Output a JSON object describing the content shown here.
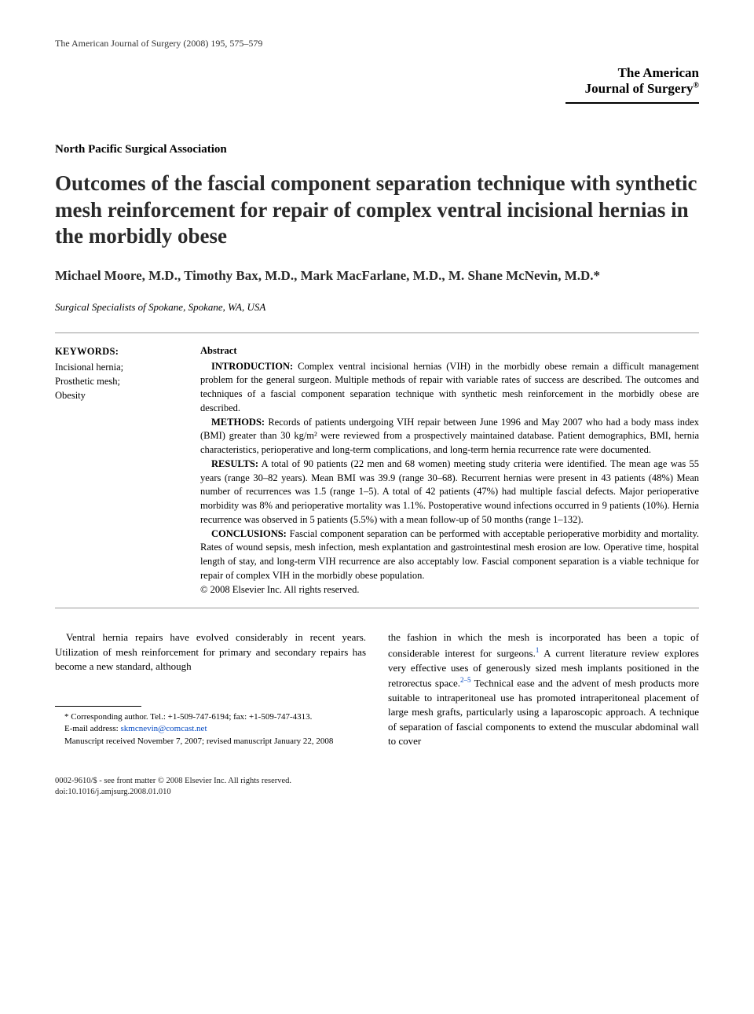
{
  "running_head": "The American Journal of Surgery (2008) 195, 575–579",
  "brand_line1": "The American",
  "brand_line2": "Journal of Surgery",
  "brand_mark": "®",
  "section_label": "North Pacific Surgical Association",
  "title": "Outcomes of the fascial component separation technique with synthetic mesh reinforcement for repair of complex ventral incisional hernias in the morbidly obese",
  "authors": "Michael Moore, M.D., Timothy Bax, M.D., Mark MacFarlane, M.D., M. Shane McNevin, M.D.*",
  "affiliation": "Surgical Specialists of Spokane, Spokane, WA, USA",
  "keywords": {
    "heading": "KEYWORDS:",
    "items": [
      "Incisional hernia;",
      "Prosthetic mesh;",
      "Obesity"
    ]
  },
  "abstract": {
    "heading": "Abstract",
    "intro_label": "INTRODUCTION:",
    "intro_text": "Complex ventral incisional hernias (VIH) in the morbidly obese remain a difficult management problem for the general surgeon. Multiple methods of repair with variable rates of success are described. The outcomes and techniques of a fascial component separation technique with synthetic mesh reinforcement in the morbidly obese are described.",
    "methods_label": "METHODS:",
    "methods_text": "Records of patients undergoing VIH repair between June 1996 and May 2007 who had a body mass index (BMI) greater than 30 kg/m² were reviewed from a prospectively maintained database. Patient demographics, BMI, hernia characteristics, perioperative and long-term complications, and long-term hernia recurrence rate were documented.",
    "results_label": "RESULTS:",
    "results_text": "A total of 90 patients (22 men and 68 women) meeting study criteria were identified. The mean age was 55 years (range 30–82 years). Mean BMI was 39.9 (range 30–68). Recurrent hernias were present in 43 patients (48%) Mean number of recurrences was 1.5 (range 1–5). A total of 42 patients (47%) had multiple fascial defects. Major perioperative morbidity was 8% and perioperative mortality was 1.1%. Postoperative wound infections occurred in 9 patients (10%). Hernia recurrence was observed in 5 patients (5.5%) with a mean follow-up of 50 months (range 1–132).",
    "conclusions_label": "CONCLUSIONS:",
    "conclusions_text": "Fascial component separation can be performed with acceptable perioperative morbidity and mortality. Rates of wound sepsis, mesh infection, mesh explantation and gastrointestinal mesh erosion are low. Operative time, hospital length of stay, and long-term VIH recurrence are also acceptably low. Fascial component separation is a viable technique for repair of complex VIH in the morbidly obese population.",
    "copyright": "© 2008 Elsevier Inc. All rights reserved."
  },
  "body": {
    "col1": "Ventral hernia repairs have evolved considerably in recent years. Utilization of mesh reinforcement for primary and secondary repairs has become a new standard, although",
    "col2_a": "the fashion in which the mesh is incorporated has been a topic of considerable interest for surgeons.",
    "ref1": "1",
    "col2_b": " A current literature review explores very effective uses of generously sized mesh implants positioned in the retrorectus space.",
    "ref2": "2–5",
    "col2_c": " Technical ease and the advent of mesh products more suitable to intraperitoneal use has promoted intraperitoneal placement of large mesh grafts, particularly using a laparoscopic approach. A technique of separation of fascial components to extend the muscular abdominal wall to cover"
  },
  "footnotes": {
    "corr": "* Corresponding author. Tel.: +1-509-747-6194; fax: +1-509-747-4313.",
    "email_label": "E-mail address: ",
    "email": "skmcnevin@comcast.net",
    "ms": "Manuscript received November 7, 2007; revised manuscript January 22, 2008"
  },
  "bottom": {
    "line1": "0002-9610/$ - see front matter © 2008 Elsevier Inc. All rights reserved.",
    "line2": "doi:10.1016/j.amjsurg.2008.01.010"
  }
}
